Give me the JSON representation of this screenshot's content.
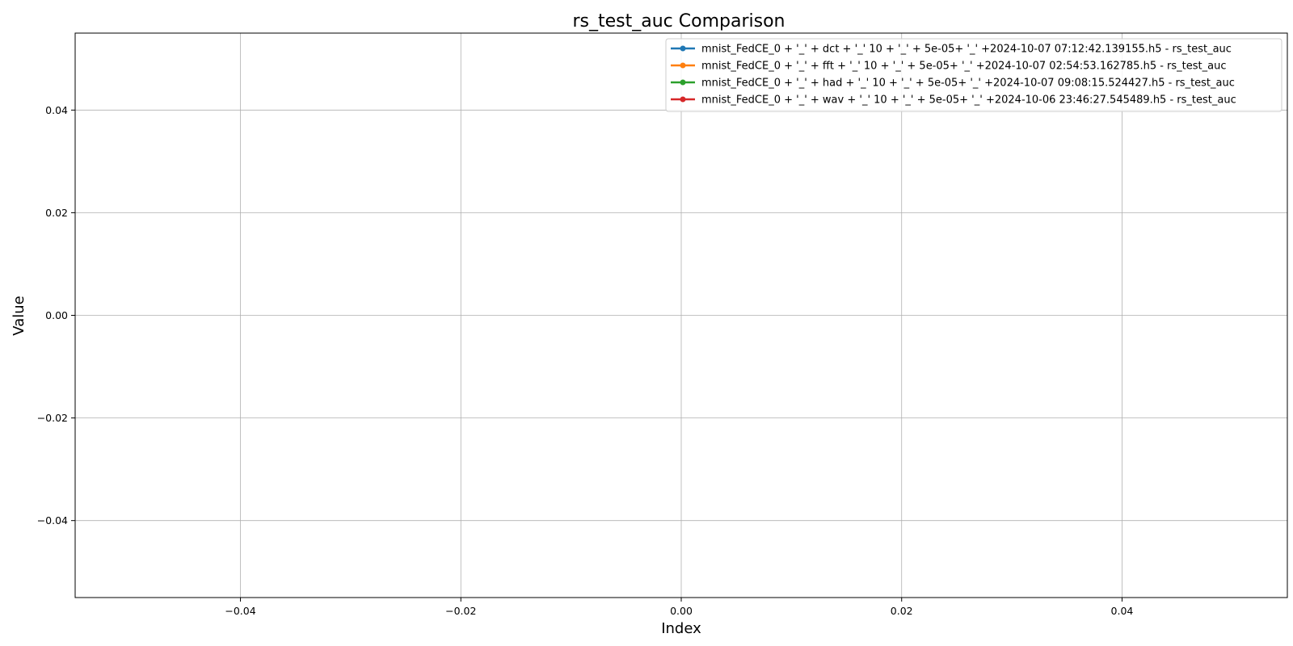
{
  "chart_data": {
    "type": "line",
    "title": "rs_test_auc Comparison",
    "xlabel": "Index",
    "ylabel": "Value",
    "xlim": [
      -0.055,
      0.055
    ],
    "ylim": [
      -0.055,
      0.055
    ],
    "x_ticks": [
      -0.04,
      -0.02,
      0.0,
      0.02,
      0.04
    ],
    "x_tick_labels": [
      "−0.04",
      "−0.02",
      "0.00",
      "0.02",
      "0.04"
    ],
    "y_ticks": [
      0.04,
      0.02,
      0.0,
      -0.02,
      -0.04
    ],
    "y_tick_labels": [
      "0.04",
      "0.02",
      "0.00",
      "−0.02",
      "−0.04"
    ],
    "grid": true,
    "legend_position": "top-right",
    "series": [
      {
        "name": "mnist_FedCE_0 + '_' + dct + '_' 10 + '_' + 5e-05+ '_' +2024-10-07 07:12:42.139155.h5 - rs_test_auc",
        "color": "#1f77b4",
        "x": [],
        "values": []
      },
      {
        "name": "mnist_FedCE_0 + '_' + fft + '_' 10 + '_' + 5e-05+ '_' +2024-10-07 02:54:53.162785.h5 - rs_test_auc",
        "color": "#ff7f0e",
        "x": [],
        "values": []
      },
      {
        "name": "mnist_FedCE_0 + '_' + had + '_' 10 + '_' + 5e-05+ '_' +2024-10-07 09:08:15.524427.h5 - rs_test_auc",
        "color": "#2ca02c",
        "x": [],
        "values": []
      },
      {
        "name": "mnist_FedCE_0 + '_' + wav + '_' 10 + '_' + 5e-05+ '_' +2024-10-06 23:46:27.545489.h5 - rs_test_auc",
        "color": "#d62728",
        "x": [],
        "values": []
      }
    ]
  }
}
